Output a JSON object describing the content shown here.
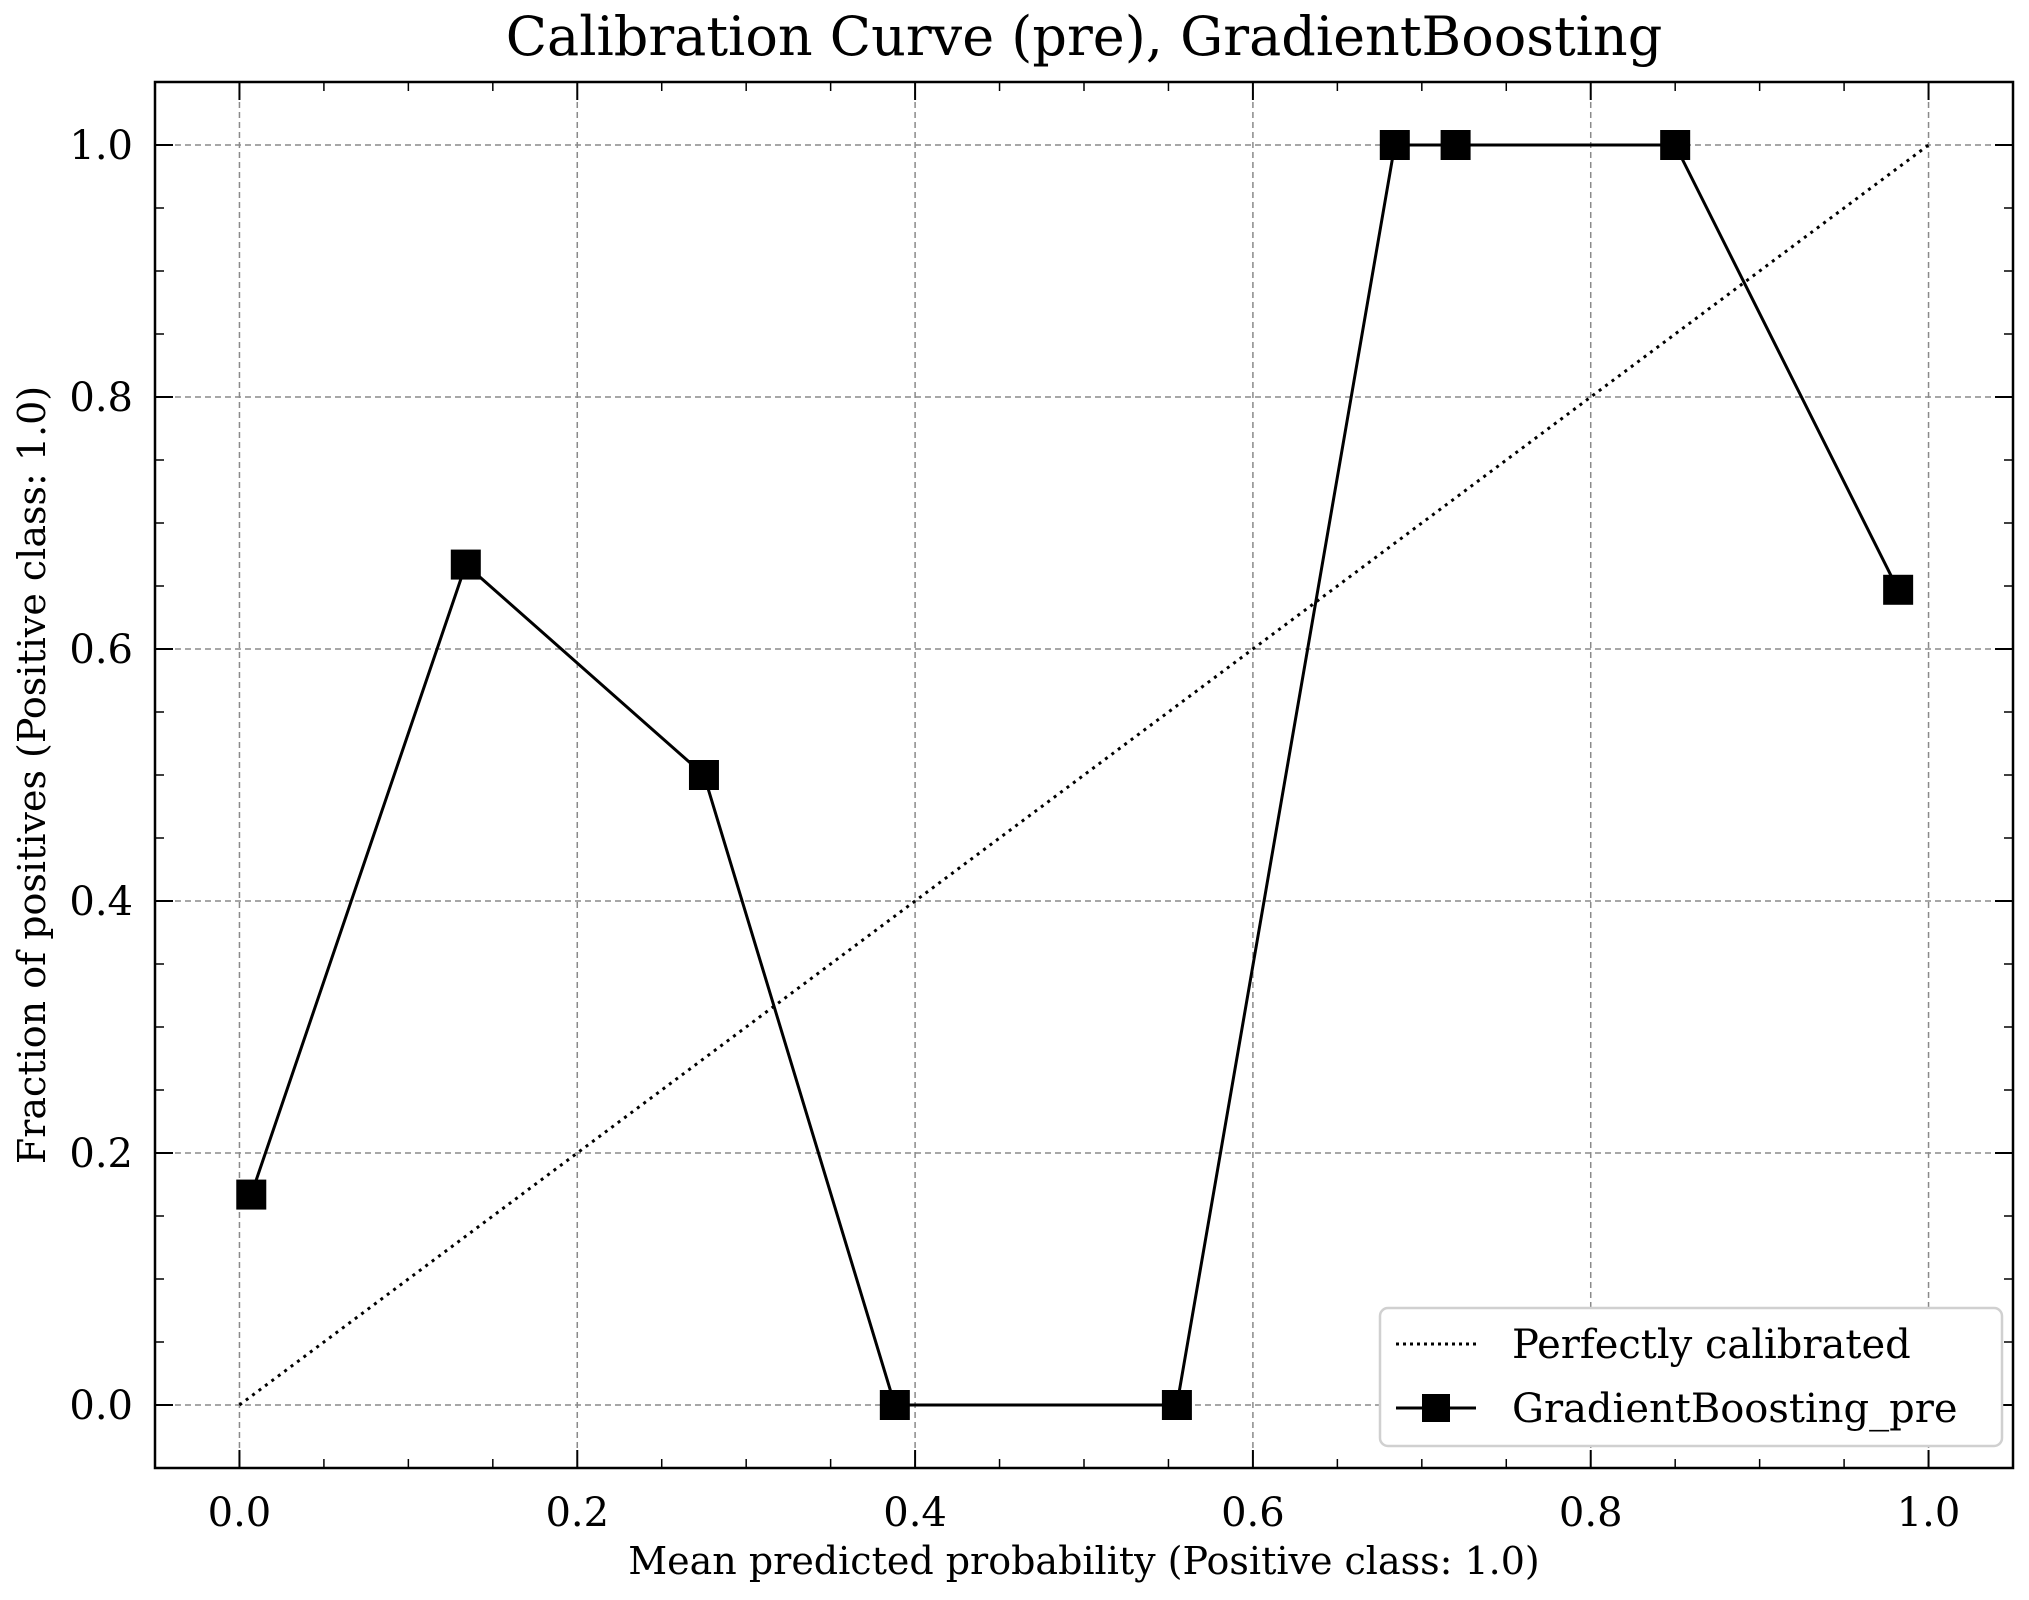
{
  "chart_data": {
    "type": "line",
    "title": "Calibration Curve (pre), GradientBoosting",
    "xlabel": "Mean predicted probability (Positive class: 1.0)",
    "ylabel": "Fraction of positives (Positive class: 1.0)",
    "xlim": [
      -0.05,
      1.05
    ],
    "ylim": [
      -0.05,
      1.05
    ],
    "xticks": [
      0.0,
      0.2,
      0.4,
      0.6,
      0.8,
      1.0
    ],
    "xtick_labels": [
      "0.0",
      "0.2",
      "0.4",
      "0.6",
      "0.8",
      "1.0"
    ],
    "yticks": [
      0.0,
      0.2,
      0.4,
      0.6,
      0.8,
      1.0
    ],
    "ytick_labels": [
      "0.0",
      "0.2",
      "0.4",
      "0.6",
      "0.8",
      "1.0"
    ],
    "grid": true,
    "legend_position": "lower-right",
    "series": [
      {
        "name": "Perfectly calibrated",
        "style": "dotted",
        "marker": "none",
        "color": "#000000",
        "x": [
          0.0,
          1.0
        ],
        "y": [
          0.0,
          1.0
        ]
      },
      {
        "name": "GradientBoosting_pre",
        "style": "solid",
        "marker": "square",
        "color": "#000000",
        "x": [
          0.007,
          0.134,
          0.275,
          0.388,
          0.555,
          0.684,
          0.72,
          0.85,
          0.982
        ],
        "y": [
          0.167,
          0.667,
          0.5,
          0.0,
          0.0,
          1.0,
          1.0,
          1.0,
          0.647
        ]
      }
    ]
  }
}
